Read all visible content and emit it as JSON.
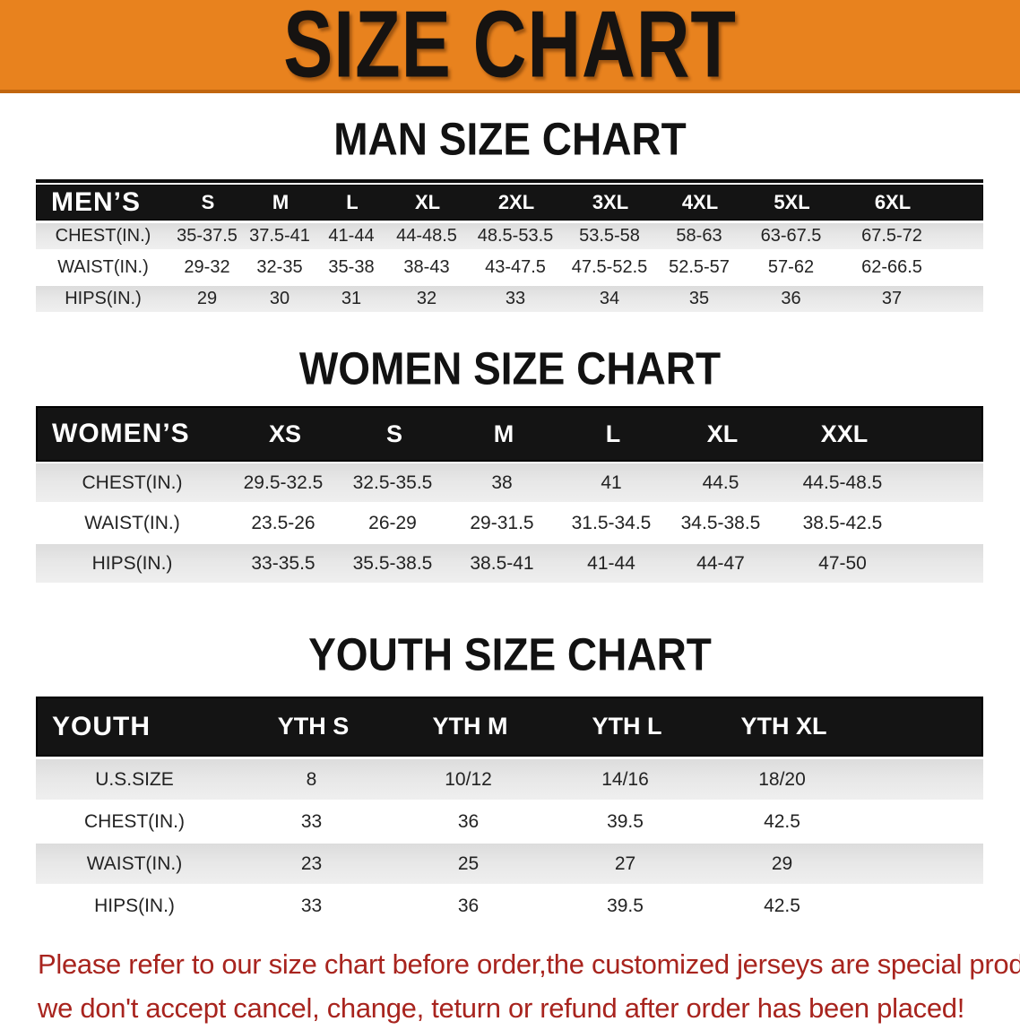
{
  "banner": {
    "title": "SIZE CHART",
    "bg_color": "#e8821e"
  },
  "colors": {
    "banner_orange": "#e8821e",
    "table_header_black": "#141414",
    "row_shade_gray": "#e4e4e4",
    "disclaimer_red": "#a8241e"
  },
  "men": {
    "heading": "MAN SIZE CHART",
    "corner": "MEN’S",
    "cols": [
      "S",
      "M",
      "L",
      "XL",
      "2XL",
      "3XL",
      "4XL",
      "5XL",
      "6XL"
    ],
    "rows": [
      {
        "label": "CHEST(IN.)",
        "v": [
          "35-37.5",
          "37.5-41",
          "41-44",
          "44-48.5",
          "48.5-53.5",
          "53.5-58",
          "58-63",
          "63-67.5",
          "67.5-72"
        ]
      },
      {
        "label": "WAIST(IN.)",
        "v": [
          "29-32",
          "32-35",
          "35-38",
          "38-43",
          "43-47.5",
          "47.5-52.5",
          "52.5-57",
          "57-62",
          "62-66.5"
        ]
      },
      {
        "label": "HIPS(IN.)",
        "v": [
          "29",
          "30",
          "31",
          "32",
          "33",
          "34",
          "35",
          "36",
          "37"
        ]
      }
    ]
  },
  "women": {
    "heading": "WOMEN SIZE CHART",
    "corner": "WOMEN’S",
    "cols": [
      "XS",
      "S",
      "M",
      "L",
      "XL",
      "XXL"
    ],
    "rows": [
      {
        "label": "CHEST(IN.)",
        "v": [
          "29.5-32.5",
          "32.5-35.5",
          "38",
          "41",
          "44.5",
          "44.5-48.5"
        ]
      },
      {
        "label": "WAIST(IN.)",
        "v": [
          "23.5-26",
          "26-29",
          "29-31.5",
          "31.5-34.5",
          "34.5-38.5",
          "38.5-42.5"
        ]
      },
      {
        "label": "HIPS(IN.)",
        "v": [
          "33-35.5",
          "35.5-38.5",
          "38.5-41",
          "41-44",
          "44-47",
          "47-50"
        ]
      }
    ]
  },
  "youth": {
    "heading": "YOUTH SIZE CHART",
    "corner": "YOUTH",
    "cols": [
      "YTH S",
      "YTH M",
      "YTH L",
      "YTH XL"
    ],
    "rows": [
      {
        "label": "U.S.SIZE",
        "v": [
          "8",
          "10/12",
          "14/16",
          "18/20"
        ]
      },
      {
        "label": "CHEST(IN.)",
        "v": [
          "33",
          "36",
          "39.5",
          "42.5"
        ]
      },
      {
        "label": "WAIST(IN.)",
        "v": [
          "23",
          "25",
          "27",
          "29"
        ]
      },
      {
        "label": "HIPS(IN.)",
        "v": [
          "33",
          "36",
          "39.5",
          "42.5"
        ]
      }
    ]
  },
  "footer": {
    "line1": "Please refer to our size chart before order,the customized jerseys are special products,",
    "line2": "we don't accept cancel, change, teturn or refund after order has been placed!"
  }
}
